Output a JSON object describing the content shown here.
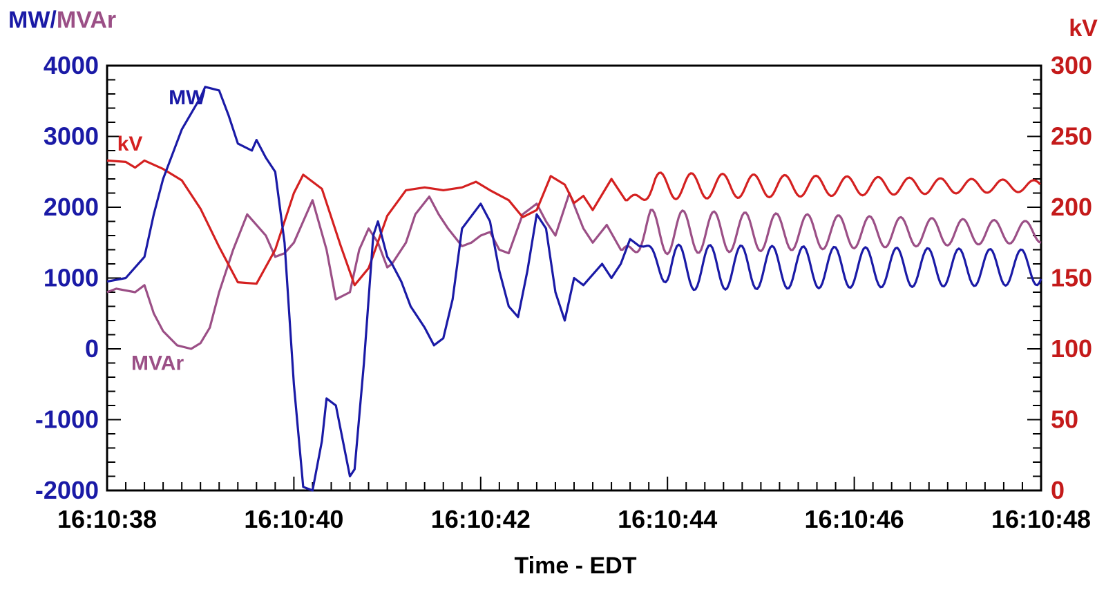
{
  "chart_data": {
    "type": "line",
    "xlabel": "Time - EDT",
    "ylabel_left": {
      "part1": "MW",
      "sep": "/",
      "part2": "MVAr"
    },
    "ylabel_right": "kV",
    "x_tick_labels": [
      "16:10:38",
      "16:10:40",
      "16:10:42",
      "16:10:44",
      "16:10:46",
      "16:10:48"
    ],
    "x_tick_seconds": [
      38,
      40,
      42,
      44,
      46,
      48
    ],
    "xlim": [
      38,
      48
    ],
    "ylim_left": [
      -2000,
      4000
    ],
    "ylim_right": [
      0,
      300
    ],
    "y_left_ticks": [
      "4000",
      "3000",
      "2000",
      "1000",
      "0",
      "-1000",
      "-2000"
    ],
    "y_left_tick_values": [
      4000,
      3000,
      2000,
      1000,
      0,
      -1000,
      -2000
    ],
    "y_right_ticks": [
      "300",
      "250",
      "200",
      "150",
      "100",
      "50",
      "0"
    ],
    "y_right_tick_values": [
      300,
      250,
      200,
      150,
      100,
      50,
      0
    ],
    "colors": {
      "mw": "#1a1aa6",
      "mvar": "#9b4f86",
      "kv": "#d42020",
      "left_axis_text": "#1a1aa6",
      "right_axis_text": "#c41a1a",
      "frame": "#000000"
    },
    "series": [
      {
        "name": "MW",
        "axis": "left",
        "color": "#1a1aa6",
        "x": [
          38.0,
          38.2,
          38.4,
          38.5,
          38.6,
          38.8,
          39.0,
          39.05,
          39.2,
          39.3,
          39.4,
          39.55,
          39.6,
          39.7,
          39.8,
          39.9,
          40.0,
          40.1,
          40.2,
          40.3,
          40.35,
          40.45,
          40.6,
          40.65,
          40.75,
          40.85,
          40.9,
          41.0,
          41.05,
          41.15,
          41.25,
          41.3,
          41.4,
          41.5,
          41.6,
          41.7,
          41.8,
          42.0,
          42.1,
          42.2,
          42.3,
          42.4,
          42.5,
          42.6,
          42.7,
          42.8,
          42.9,
          43.0,
          43.1,
          43.2,
          43.3,
          43.4,
          43.45,
          43.5,
          43.6,
          43.7
        ],
        "y": [
          950,
          1000,
          1300,
          1900,
          2400,
          3100,
          3550,
          3700,
          3650,
          3300,
          2900,
          2800,
          2950,
          2700,
          2500,
          1500,
          -500,
          -1950,
          -2000,
          -1300,
          -700,
          -800,
          -1800,
          -1700,
          -200,
          1600,
          1800,
          1300,
          1200,
          950,
          600,
          500,
          300,
          50,
          150,
          700,
          1700,
          2050,
          1800,
          1100,
          600,
          450,
          1100,
          1900,
          1700,
          800,
          400,
          1000,
          900,
          1050,
          1200,
          1000,
          1100,
          1200,
          1550,
          1450
        ]
      },
      {
        "name": "MVAr",
        "axis": "left",
        "color": "#9b4f86",
        "x": [
          38.0,
          38.1,
          38.3,
          38.4,
          38.5,
          38.6,
          38.75,
          38.9,
          39.0,
          39.1,
          39.2,
          39.35,
          39.5,
          39.7,
          39.8,
          39.9,
          40.0,
          40.1,
          40.2,
          40.35,
          40.45,
          40.6,
          40.7,
          40.8,
          40.9,
          41.0,
          41.05,
          41.2,
          41.3,
          41.45,
          41.55,
          41.65,
          41.8,
          41.9,
          42.0,
          42.1,
          42.2,
          42.3,
          42.45,
          42.6,
          42.7,
          42.8,
          42.95,
          43.1,
          43.2,
          43.35,
          43.5
        ],
        "y": [
          800,
          850,
          800,
          900,
          500,
          250,
          50,
          0,
          80,
          300,
          800,
          1400,
          1900,
          1600,
          1300,
          1350,
          1500,
          1800,
          2100,
          1400,
          700,
          800,
          1400,
          1700,
          1500,
          1150,
          1200,
          1500,
          1900,
          2150,
          1900,
          1700,
          1450,
          1500,
          1600,
          1650,
          1400,
          1350,
          1900,
          2050,
          1800,
          1600,
          2200,
          1700,
          1500,
          1750,
          1400
        ]
      },
      {
        "name": "kV",
        "axis": "right",
        "color": "#d42020",
        "x": [
          38.0,
          38.2,
          38.3,
          38.4,
          38.6,
          38.8,
          39.0,
          39.2,
          39.4,
          39.6,
          39.8,
          40.0,
          40.1,
          40.3,
          40.5,
          40.65,
          40.8,
          41.0,
          41.2,
          41.4,
          41.6,
          41.8,
          41.95,
          42.1,
          42.3,
          42.45,
          42.6,
          42.75,
          42.9,
          43.0,
          43.1,
          43.2,
          43.4,
          43.55
        ],
        "y": [
          233,
          232,
          228,
          233,
          227,
          219,
          199,
          172,
          147,
          146,
          170,
          210,
          223,
          213,
          173,
          145,
          157,
          194,
          212,
          214,
          212,
          214,
          218,
          212,
          205,
          193,
          198,
          222,
          216,
          203,
          208,
          198,
          220,
          205
        ]
      }
    ],
    "annotations": [
      {
        "text": "MW",
        "series": "MW",
        "x": 38.6,
        "y": 3550
      },
      {
        "text": "kV",
        "series": "kV",
        "x": 38.05,
        "y": 245
      },
      {
        "text": "MVAr",
        "series": "MVAr",
        "x": 38.2,
        "y": -200
      }
    ]
  }
}
